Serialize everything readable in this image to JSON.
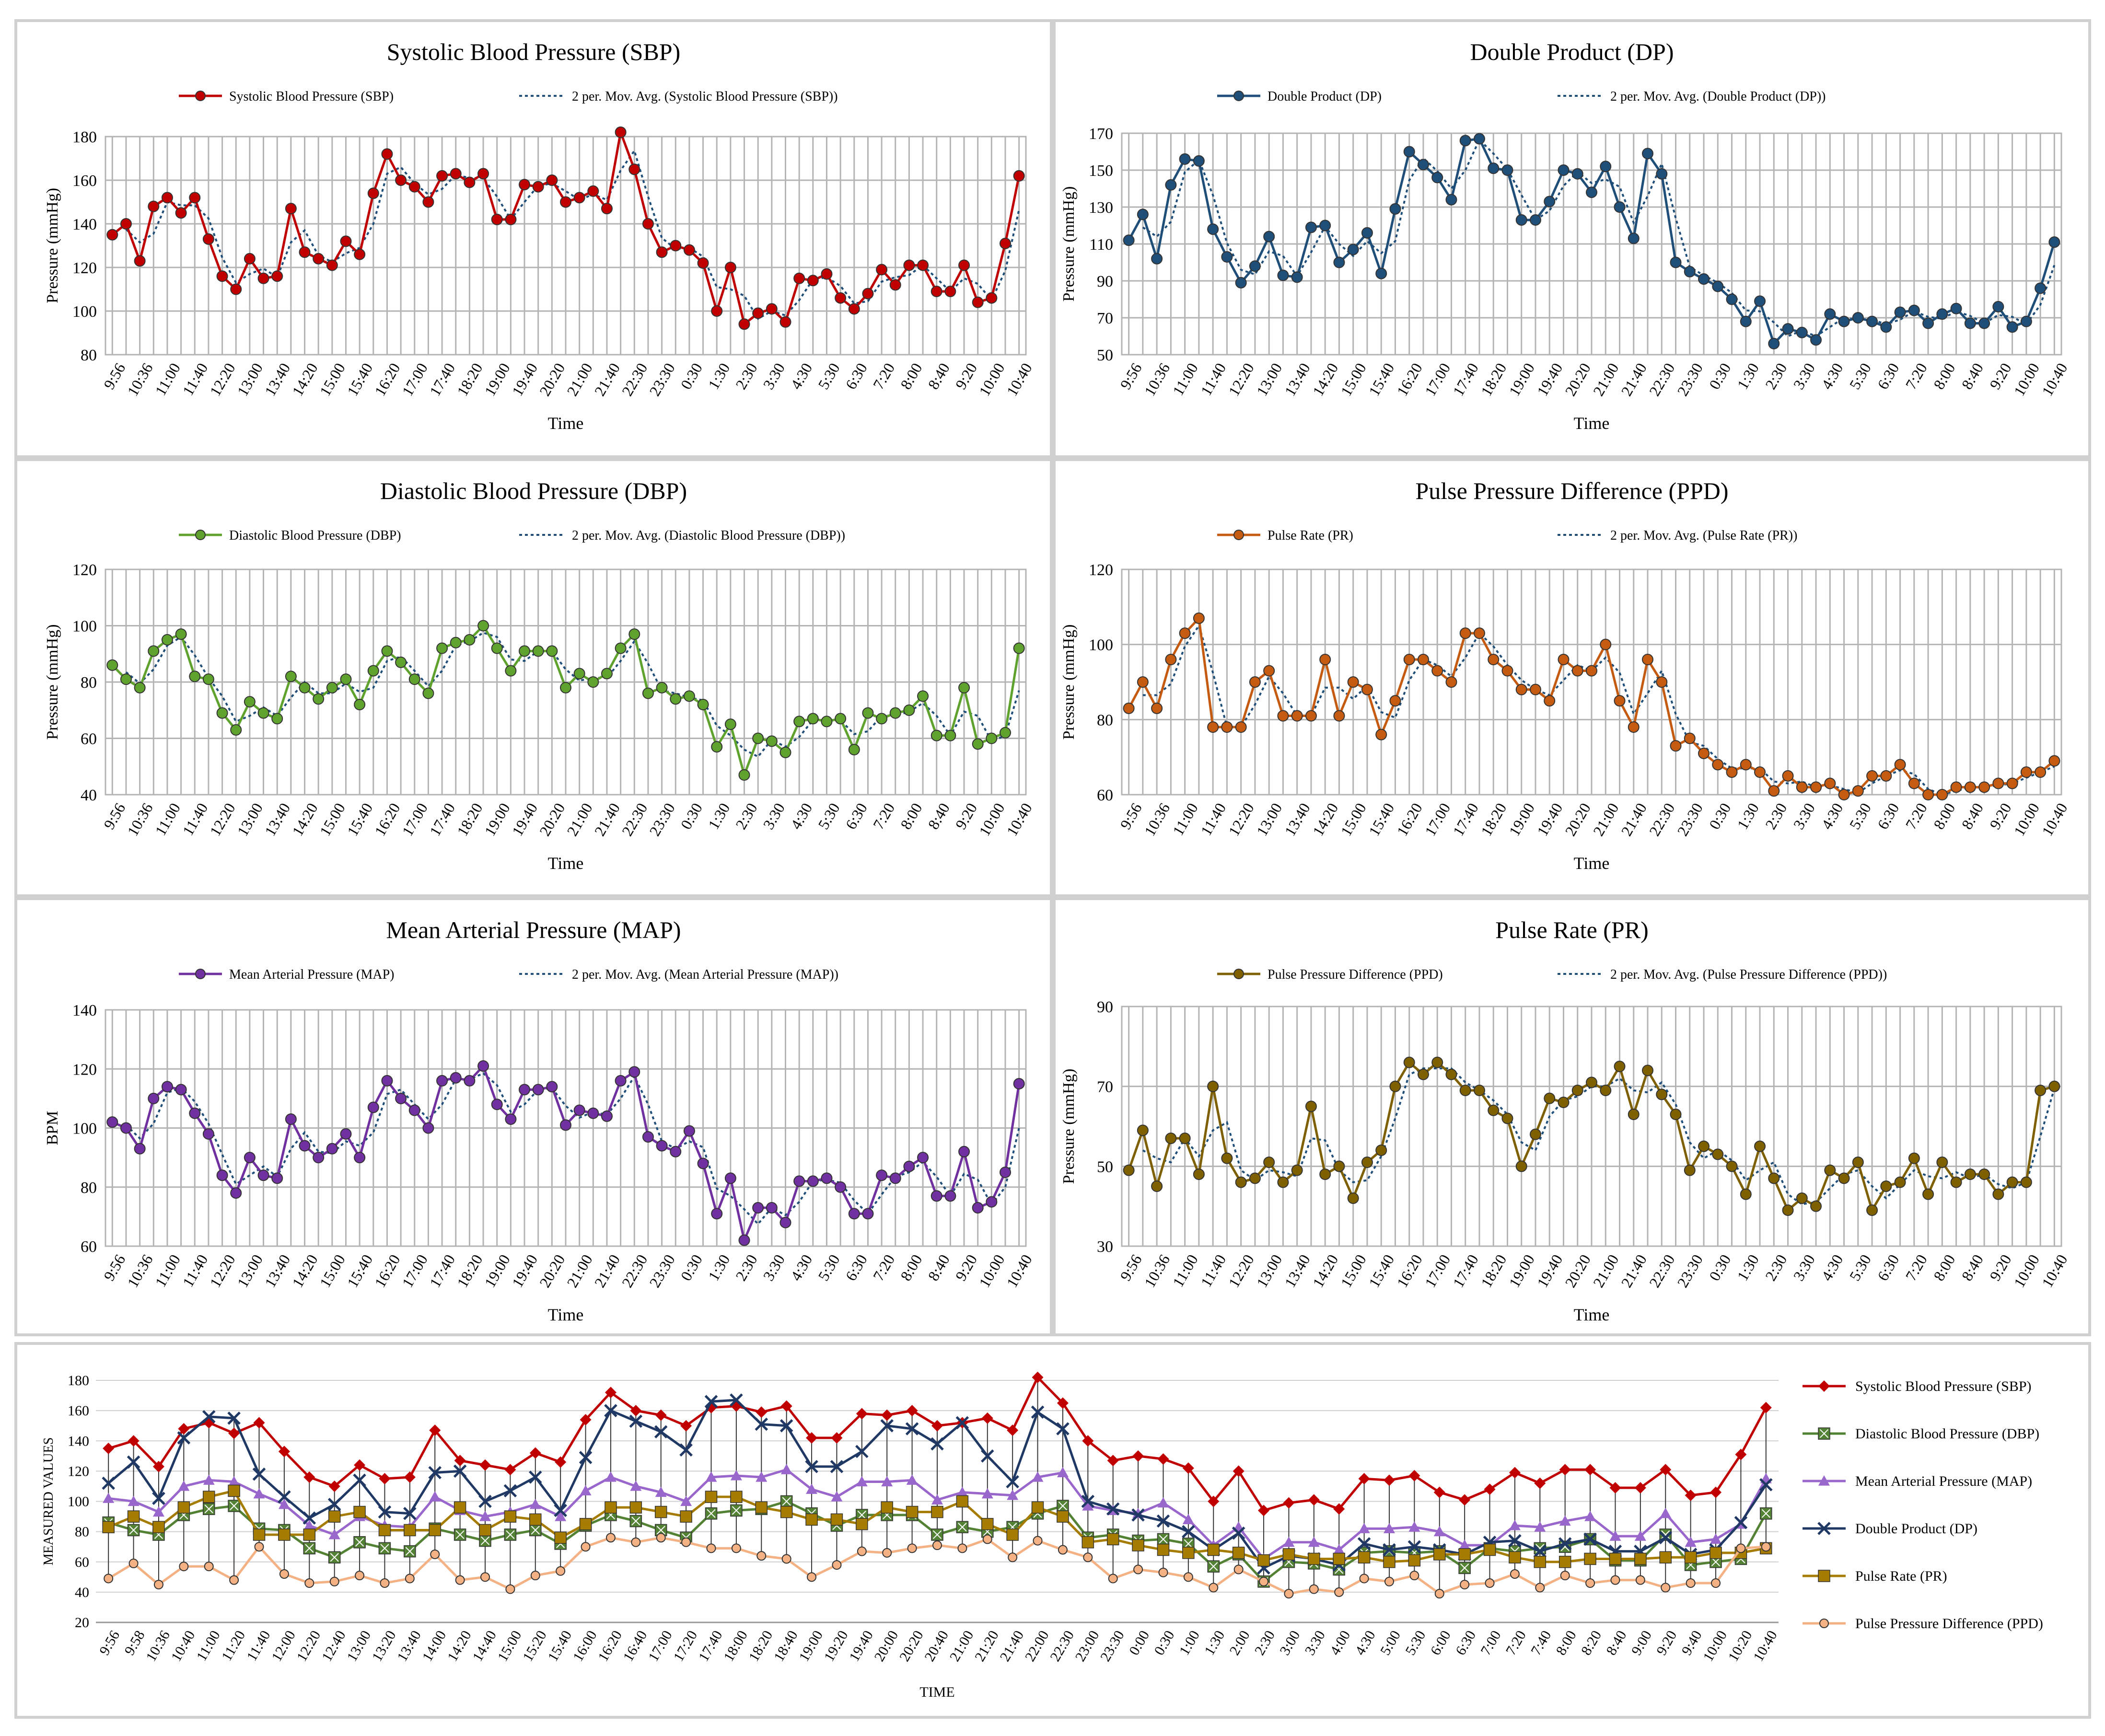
{
  "chart_data": [
    {
      "id": "sbp",
      "type": "line",
      "title": "Systolic Blood Pressure (SBP)",
      "xlabel": "Time",
      "ylabel": "Pressure (mmHg)",
      "ylim": [
        80,
        180
      ],
      "yticks": [
        80,
        100,
        120,
        140,
        160,
        180
      ],
      "legend": [
        "Systolic Blood Pressure (SBP)",
        "2 per. Mov. Avg. (Systolic Blood Pressure (SBP))"
      ],
      "legend_position": "top",
      "color": "#c00000",
      "x_ticks": [
        "9:56",
        "10:36",
        "11:00",
        "11:40",
        "12:20",
        "13:00",
        "13:40",
        "14:20",
        "15:00",
        "15:40",
        "16:20",
        "17:00",
        "17:40",
        "18:20",
        "19:00",
        "19:40",
        "20:20",
        "21:00",
        "21:40",
        "22:30",
        "23:30",
        "0:30",
        "1:30",
        "2:30",
        "3:30",
        "4:30",
        "5:30",
        "6:30",
        "7:20",
        "8:00",
        "8:40",
        "9:20",
        "10:00",
        "10:40"
      ],
      "values": [
        135,
        140,
        123,
        148,
        152,
        145,
        152,
        133,
        116,
        110,
        124,
        115,
        116,
        147,
        127,
        124,
        121,
        132,
        126,
        154,
        172,
        160,
        157,
        150,
        162,
        163,
        159,
        163,
        142,
        142,
        158,
        157,
        160,
        150,
        152,
        155,
        147,
        182,
        165,
        140,
        127,
        130,
        128,
        122,
        100,
        120,
        94,
        99,
        101,
        95,
        115,
        114,
        117,
        106,
        101,
        108,
        119,
        112,
        121,
        121,
        109,
        109,
        121,
        104,
        106,
        131,
        162
      ]
    },
    {
      "id": "dp",
      "type": "line",
      "title": "Double Product (DP)",
      "xlabel": "Time",
      "ylabel": "Pressure (mmHg)",
      "ylim": [
        50,
        170
      ],
      "yticks": [
        50,
        70,
        90,
        110,
        130,
        150,
        170
      ],
      "legend": [
        "Double Product (DP)",
        "2 per. Mov. Avg. (Double Product (DP))"
      ],
      "legend_position": "top",
      "color": "#1f4e79",
      "x_ticks": [
        "9:56",
        "10:36",
        "11:00",
        "11:40",
        "12:20",
        "13:00",
        "13:40",
        "14:20",
        "15:00",
        "15:40",
        "16:20",
        "17:00",
        "17:40",
        "18:20",
        "19:00",
        "19:40",
        "20:20",
        "21:00",
        "21:40",
        "22:30",
        "23:30",
        "0:30",
        "1:30",
        "2:30",
        "3:30",
        "4:30",
        "5:30",
        "6:30",
        "7:20",
        "8:00",
        "8:40",
        "9:20",
        "10:00",
        "10:40"
      ],
      "values": [
        112,
        126,
        102,
        142,
        156,
        155,
        118,
        103,
        89,
        98,
        114,
        93,
        92,
        119,
        120,
        100,
        107,
        116,
        94,
        129,
        160,
        153,
        146,
        134,
        166,
        167,
        151,
        150,
        123,
        123,
        133,
        150,
        148,
        138,
        152,
        130,
        113,
        159,
        148,
        100,
        95,
        91,
        87,
        80,
        68,
        79,
        56,
        64,
        62,
        58,
        72,
        68,
        70,
        68,
        65,
        73,
        74,
        67,
        72,
        75,
        67,
        67,
        76,
        65,
        68,
        86,
        111
      ]
    },
    {
      "id": "dbp",
      "type": "line",
      "title": "Diastolic Blood Pressure (DBP)",
      "xlabel": "Time",
      "ylabel": "Pressure (mmHg)",
      "ylim": [
        40,
        120
      ],
      "yticks": [
        40,
        60,
        80,
        100,
        120
      ],
      "legend": [
        "Diastolic Blood Pressure (DBP)",
        "2 per. Mov. Avg. (Diastolic Blood Pressure (DBP))"
      ],
      "legend_position": "top",
      "color": "#5fa32e",
      "x_ticks": [
        "9:56",
        "10:36",
        "11:00",
        "11:40",
        "12:20",
        "13:00",
        "13:40",
        "14:20",
        "15:00",
        "15:40",
        "16:20",
        "17:00",
        "17:40",
        "18:20",
        "19:00",
        "19:40",
        "20:20",
        "21:00",
        "21:40",
        "22:30",
        "23:30",
        "0:30",
        "1:30",
        "2:30",
        "3:30",
        "4:30",
        "5:30",
        "6:30",
        "7:20",
        "8:00",
        "8:40",
        "9:20",
        "10:00",
        "10:40"
      ],
      "values": [
        86,
        81,
        78,
        91,
        95,
        97,
        82,
        81,
        69,
        63,
        73,
        69,
        67,
        82,
        78,
        74,
        78,
        81,
        72,
        84,
        91,
        87,
        81,
        76,
        92,
        94,
        95,
        100,
        92,
        84,
        91,
        91,
        91,
        78,
        83,
        80,
        83,
        92,
        97,
        76,
        78,
        74,
        75,
        72,
        57,
        65,
        47,
        60,
        59,
        55,
        66,
        67,
        66,
        67,
        56,
        69,
        67,
        69,
        70,
        75,
        61,
        61,
        78,
        58,
        60,
        62,
        92
      ]
    },
    {
      "id": "pr",
      "type": "line",
      "title": "Pulse Pressure Difference (PPD)",
      "xlabel": "Time",
      "ylabel": "Pressure (mmHg)",
      "ylim": [
        60,
        120
      ],
      "yticks": [
        60,
        80,
        100,
        120
      ],
      "legend": [
        "Pulse Rate (PR)",
        "2 per. Mov. Avg. (Pulse Rate (PR))"
      ],
      "legend_position": "top",
      "color": "#c55a11",
      "x_ticks": [
        "9:56",
        "10:36",
        "11:00",
        "11:40",
        "12:20",
        "13:00",
        "13:40",
        "14:20",
        "15:00",
        "15:40",
        "16:20",
        "17:00",
        "17:40",
        "18:20",
        "19:00",
        "19:40",
        "20:20",
        "21:00",
        "21:40",
        "22:30",
        "23:30",
        "0:30",
        "1:30",
        "2:30",
        "3:30",
        "4:30",
        "5:30",
        "6:30",
        "7:20",
        "8:00",
        "8:40",
        "9:20",
        "10:00",
        "10:40"
      ],
      "values": [
        83,
        90,
        83,
        96,
        103,
        107,
        78,
        78,
        78,
        90,
        93,
        81,
        81,
        81,
        96,
        81,
        90,
        88,
        76,
        85,
        96,
        96,
        93,
        90,
        103,
        103,
        96,
        93,
        88,
        88,
        85,
        96,
        93,
        93,
        100,
        85,
        78,
        96,
        90,
        73,
        75,
        71,
        68,
        66,
        68,
        66,
        61,
        65,
        62,
        62,
        63,
        60,
        61,
        65,
        65,
        68,
        63,
        60,
        60,
        62,
        62,
        62,
        63,
        63,
        66,
        66,
        69
      ]
    },
    {
      "id": "map",
      "type": "line",
      "title": "Mean Arterial Pressure (MAP)",
      "xlabel": "Time",
      "ylabel": "BPM",
      "ylim": [
        60,
        140
      ],
      "yticks": [
        60,
        80,
        100,
        120,
        140
      ],
      "legend": [
        "Mean Arterial Pressure (MAP)",
        "2 per. Mov. Avg. (Mean Arterial Pressure (MAP))"
      ],
      "legend_position": "top",
      "color": "#7030a0",
      "x_ticks": [
        "9:56",
        "10:36",
        "11:00",
        "11:40",
        "12:20",
        "13:00",
        "13:40",
        "14:20",
        "15:00",
        "15:40",
        "16:20",
        "17:00",
        "17:40",
        "18:20",
        "19:00",
        "19:40",
        "20:20",
        "21:00",
        "21:40",
        "22:30",
        "23:30",
        "0:30",
        "1:30",
        "2:30",
        "3:30",
        "4:30",
        "5:30",
        "6:30",
        "7:20",
        "8:00",
        "8:40",
        "9:20",
        "10:00",
        "10:40"
      ],
      "values": [
        102,
        100,
        93,
        110,
        114,
        113,
        105,
        98,
        84,
        78,
        90,
        84,
        83,
        103,
        94,
        90,
        93,
        98,
        90,
        107,
        116,
        110,
        106,
        100,
        116,
        117,
        116,
        121,
        108,
        103,
        113,
        113,
        114,
        101,
        106,
        105,
        104,
        116,
        119,
        97,
        94,
        92,
        99,
        88,
        71,
        83,
        62,
        73,
        73,
        68,
        82,
        82,
        83,
        80,
        71,
        71,
        84,
        83,
        87,
        90,
        77,
        77,
        92,
        73,
        75,
        85,
        115
      ]
    },
    {
      "id": "ppd",
      "type": "line",
      "title": "Pulse Rate (PR)",
      "xlabel": "Time",
      "ylabel": "Pressure (mmHg)",
      "ylim": [
        30,
        90
      ],
      "yticks": [
        30,
        50,
        70,
        90
      ],
      "legend": [
        "Pulse Pressure Difference (PPD)",
        "2 per. Mov. Avg. (Pulse Pressure Difference (PPD))"
      ],
      "legend_position": "top",
      "color": "#7f6000",
      "x_ticks": [
        "9:56",
        "10:36",
        "11:00",
        "11:40",
        "12:20",
        "13:00",
        "13:40",
        "14:20",
        "15:00",
        "15:40",
        "16:20",
        "17:00",
        "17:40",
        "18:20",
        "19:00",
        "19:40",
        "20:20",
        "21:00",
        "21:40",
        "22:30",
        "23:30",
        "0:30",
        "1:30",
        "2:30",
        "3:30",
        "4:30",
        "5:30",
        "6:30",
        "7:20",
        "8:00",
        "8:40",
        "9:20",
        "10:00",
        "10:40"
      ],
      "values": [
        49,
        59,
        45,
        57,
        57,
        48,
        70,
        52,
        46,
        47,
        51,
        46,
        49,
        65,
        48,
        50,
        42,
        51,
        54,
        70,
        76,
        73,
        76,
        73,
        69,
        69,
        64,
        62,
        50,
        58,
        67,
        66,
        69,
        71,
        69,
        75,
        63,
        74,
        68,
        63,
        49,
        55,
        53,
        50,
        43,
        55,
        47,
        39,
        42,
        40,
        49,
        47,
        51,
        39,
        45,
        46,
        52,
        43,
        51,
        46,
        48,
        48,
        43,
        46,
        46,
        69,
        70
      ]
    },
    {
      "id": "combined",
      "type": "line",
      "title": "",
      "xlabel": "TIME",
      "ylabel": "MEASURED VALUES",
      "ylim": [
        20,
        180
      ],
      "yticks": [
        20,
        40,
        60,
        80,
        100,
        120,
        140,
        160,
        180
      ],
      "legend_position": "right",
      "x_ticks": [
        "9:56",
        "9:58",
        "10:36",
        "10:40",
        "11:00",
        "11:20",
        "11:40",
        "12:00",
        "12:20",
        "12:40",
        "13:00",
        "13:20",
        "13:40",
        "14:00",
        "14:20",
        "14:40",
        "15:00",
        "15:20",
        "15:40",
        "16:00",
        "16:20",
        "16:40",
        "17:00",
        "17:20",
        "17:40",
        "18:00",
        "18:20",
        "18:40",
        "19:00",
        "19:20",
        "19:40",
        "20:00",
        "20:20",
        "20:40",
        "21:00",
        "21:20",
        "21:40",
        "22:00",
        "22:30",
        "23:00",
        "23:30",
        "0:00",
        "0:30",
        "1:00",
        "1:30",
        "2:00",
        "2:30",
        "3:00",
        "3:30",
        "4:00",
        "4:30",
        "5:00",
        "5:30",
        "6:00",
        "6:30",
        "7:00",
        "7:20",
        "7:40",
        "8:00",
        "8:20",
        "8:40",
        "9:00",
        "9:20",
        "9:40",
        "10:00",
        "10:20",
        "10:40"
      ],
      "series": [
        {
          "name": "Systolic Blood Pressure (SBP)",
          "color": "#c00000",
          "marker": "diamond",
          "ref": "sbp"
        },
        {
          "name": "Diastolic Blood Pressure (DBP)",
          "color": "#548235",
          "marker": "square-x",
          "ref": "dbp"
        },
        {
          "name": "Mean Arterial Pressure (MAP)",
          "color": "#9966cc",
          "marker": "triangle",
          "ref": "map"
        },
        {
          "name": "Double Product (DP)",
          "color": "#1f3864",
          "marker": "x",
          "ref": "dp"
        },
        {
          "name": "Pulse Rate (PR)",
          "color": "#a57c00",
          "marker": "square",
          "ref": "pr"
        },
        {
          "name": "Pulse Pressure Difference (PPD)",
          "color": "#f4b183",
          "marker": "circle",
          "ref": "ppd"
        }
      ]
    }
  ]
}
